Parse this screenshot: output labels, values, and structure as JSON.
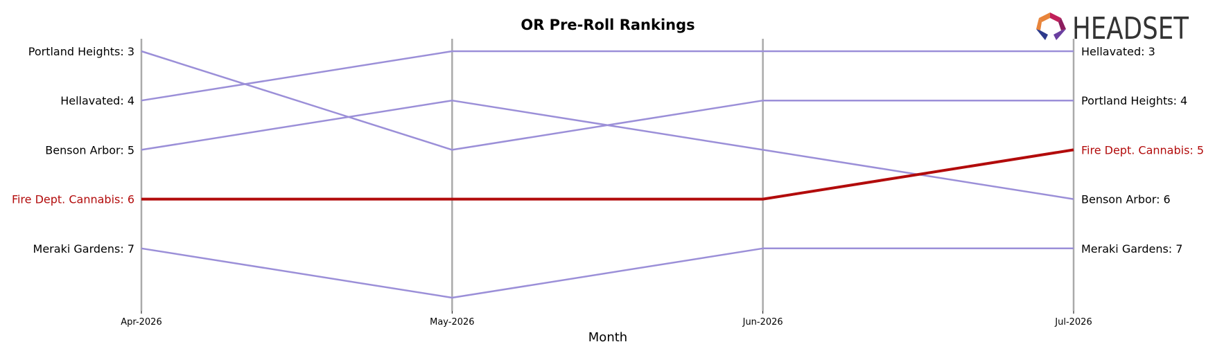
{
  "brand": {
    "name": "HEADSET",
    "logo_colors": [
      "#e8843a",
      "#c0205a",
      "#8c1d5e",
      "#2d3a8c",
      "#6a3fa0"
    ]
  },
  "chart_data": {
    "type": "line",
    "title": "OR Pre-Roll Rankings",
    "xlabel": "Month",
    "ylabel": "",
    "x": [
      "Apr-2026",
      "May-2026",
      "Jun-2026",
      "Jul-2026"
    ],
    "ylim": [
      8.3,
      2.75
    ],
    "y_inverted": true,
    "grid": "vertical lines at each month",
    "colors": {
      "default": "#9b8fd8",
      "highlight": "#b20b0b",
      "grid": "#aaaaaa"
    },
    "series": [
      {
        "name": "Portland Heights",
        "values": [
          3,
          5,
          4,
          4
        ],
        "highlight": false
      },
      {
        "name": "Hellavated",
        "values": [
          4,
          3,
          3,
          3
        ],
        "highlight": false
      },
      {
        "name": "Benson Arbor",
        "values": [
          5,
          4,
          5,
          6
        ],
        "highlight": false
      },
      {
        "name": "Fire Dept. Cannabis",
        "values": [
          6,
          6,
          6,
          5
        ],
        "highlight": true
      },
      {
        "name": "Meraki Gardens",
        "values": [
          7,
          8,
          7,
          7
        ],
        "highlight": false
      }
    ],
    "start_labels": [
      {
        "text": "Portland Heights: 3",
        "series": "Portland Heights"
      },
      {
        "text": "Hellavated: 4",
        "series": "Hellavated"
      },
      {
        "text": "Benson Arbor: 5",
        "series": "Benson Arbor"
      },
      {
        "text": "Fire Dept. Cannabis: 6",
        "series": "Fire Dept. Cannabis"
      },
      {
        "text": "Meraki Gardens: 7",
        "series": "Meraki Gardens"
      }
    ],
    "end_labels": [
      {
        "text": "Hellavated: 3",
        "series": "Hellavated"
      },
      {
        "text": "Portland Heights: 4",
        "series": "Portland Heights"
      },
      {
        "text": "Fire Dept. Cannabis: 5",
        "series": "Fire Dept. Cannabis"
      },
      {
        "text": "Benson Arbor: 6",
        "series": "Benson Arbor"
      },
      {
        "text": "Meraki Gardens: 7",
        "series": "Meraki Gardens"
      }
    ]
  }
}
